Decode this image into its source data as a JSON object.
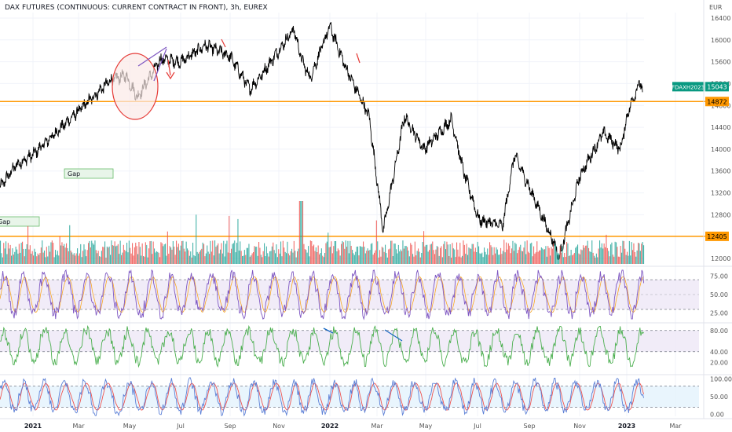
{
  "header": {
    "title": "DAX FUTURES (CONTINUOUS: CURRENT CONTRACT IN FRONT), 3h, EUREX",
    "currency": "EUR"
  },
  "chart_data": [
    {
      "type": "line",
      "name": "price",
      "y_ticks": [
        "16400",
        "16000",
        "15600",
        "15200",
        "14800",
        "14400",
        "14000",
        "13600",
        "13200",
        "12800",
        "12000"
      ],
      "ylim": [
        11900,
        16500
      ],
      "levels": [
        14872,
        12405
      ],
      "last_price": 15043,
      "symbol_tag": "FDAXH2023",
      "annotations": [
        "Gap",
        "Gap"
      ],
      "x_ticks": [
        "2021",
        "Mar",
        "May",
        "Jul",
        "Sep",
        "Nov",
        "2022",
        "Mar",
        "May",
        "Jul",
        "Sep",
        "Nov",
        "2023",
        "Mar"
      ],
      "keypoints": [
        [
          "2021 start",
          13300
        ],
        [
          "2021-01",
          13700
        ],
        [
          "Feb",
          13900
        ],
        [
          "Mar",
          14700
        ],
        [
          "Apr",
          15250
        ],
        [
          "May",
          15350
        ],
        [
          "May mid",
          14950
        ],
        [
          "Jun",
          15650
        ],
        [
          "Jul",
          15600
        ],
        [
          "Aug",
          15900
        ],
        [
          "Sep",
          15700
        ],
        [
          "Sep end",
          15100
        ],
        [
          "Oct",
          15300
        ],
        [
          "Nov",
          16200
        ],
        [
          "Nov end",
          15600
        ],
        [
          "Dec",
          15300
        ],
        [
          "2022",
          16250
        ],
        [
          "Jan",
          15500
        ],
        [
          "Feb",
          14600
        ],
        [
          "Mar",
          12500
        ],
        [
          "Mar end",
          14600
        ],
        [
          "Apr",
          14000
        ],
        [
          "Apr end",
          14550
        ],
        [
          "May",
          13600
        ],
        [
          "Jun",
          12700
        ],
        [
          "Jul",
          12600
        ],
        [
          "Aug",
          13900
        ],
        [
          "Sep",
          12300
        ],
        [
          "Oct",
          12000
        ],
        [
          "Nov",
          13500
        ],
        [
          "Dec",
          14300
        ],
        [
          "Dec end",
          14000
        ],
        [
          "2023",
          14700
        ],
        [
          "Jan end",
          15250
        ],
        [
          "last",
          15043
        ]
      ]
    },
    {
      "type": "bar",
      "name": "volume",
      "colors": {
        "up": "#26a69a",
        "down": "#ef5350"
      }
    },
    {
      "type": "line",
      "name": "oscillator-1",
      "y_ticks": [
        "75.00",
        "50.00",
        "25.00"
      ],
      "ylim": [
        15,
        85
      ],
      "band": [
        30,
        70
      ]
    },
    {
      "type": "line",
      "name": "oscillator-2",
      "y_ticks": [
        "80.00",
        "40.00",
        "20.00"
      ],
      "ylim": [
        10,
        90
      ],
      "band": [
        40,
        80
      ]
    },
    {
      "type": "line",
      "name": "oscillator-3",
      "y_ticks": [
        "100.00",
        "50.00",
        "0.00"
      ],
      "ylim": [
        -5,
        105
      ],
      "band": [
        20,
        80
      ]
    }
  ],
  "colors": {
    "price_line": "#000000",
    "level_line": "#ff9800",
    "last_tag": "#089981",
    "osc_purple": "#7e57c2",
    "osc_green": "#4caf50",
    "osc_blue": "#5b7fd6",
    "osc_red": "#ef5350",
    "band_purple": "#ede7f6",
    "band_blue": "#e3f2fd"
  }
}
